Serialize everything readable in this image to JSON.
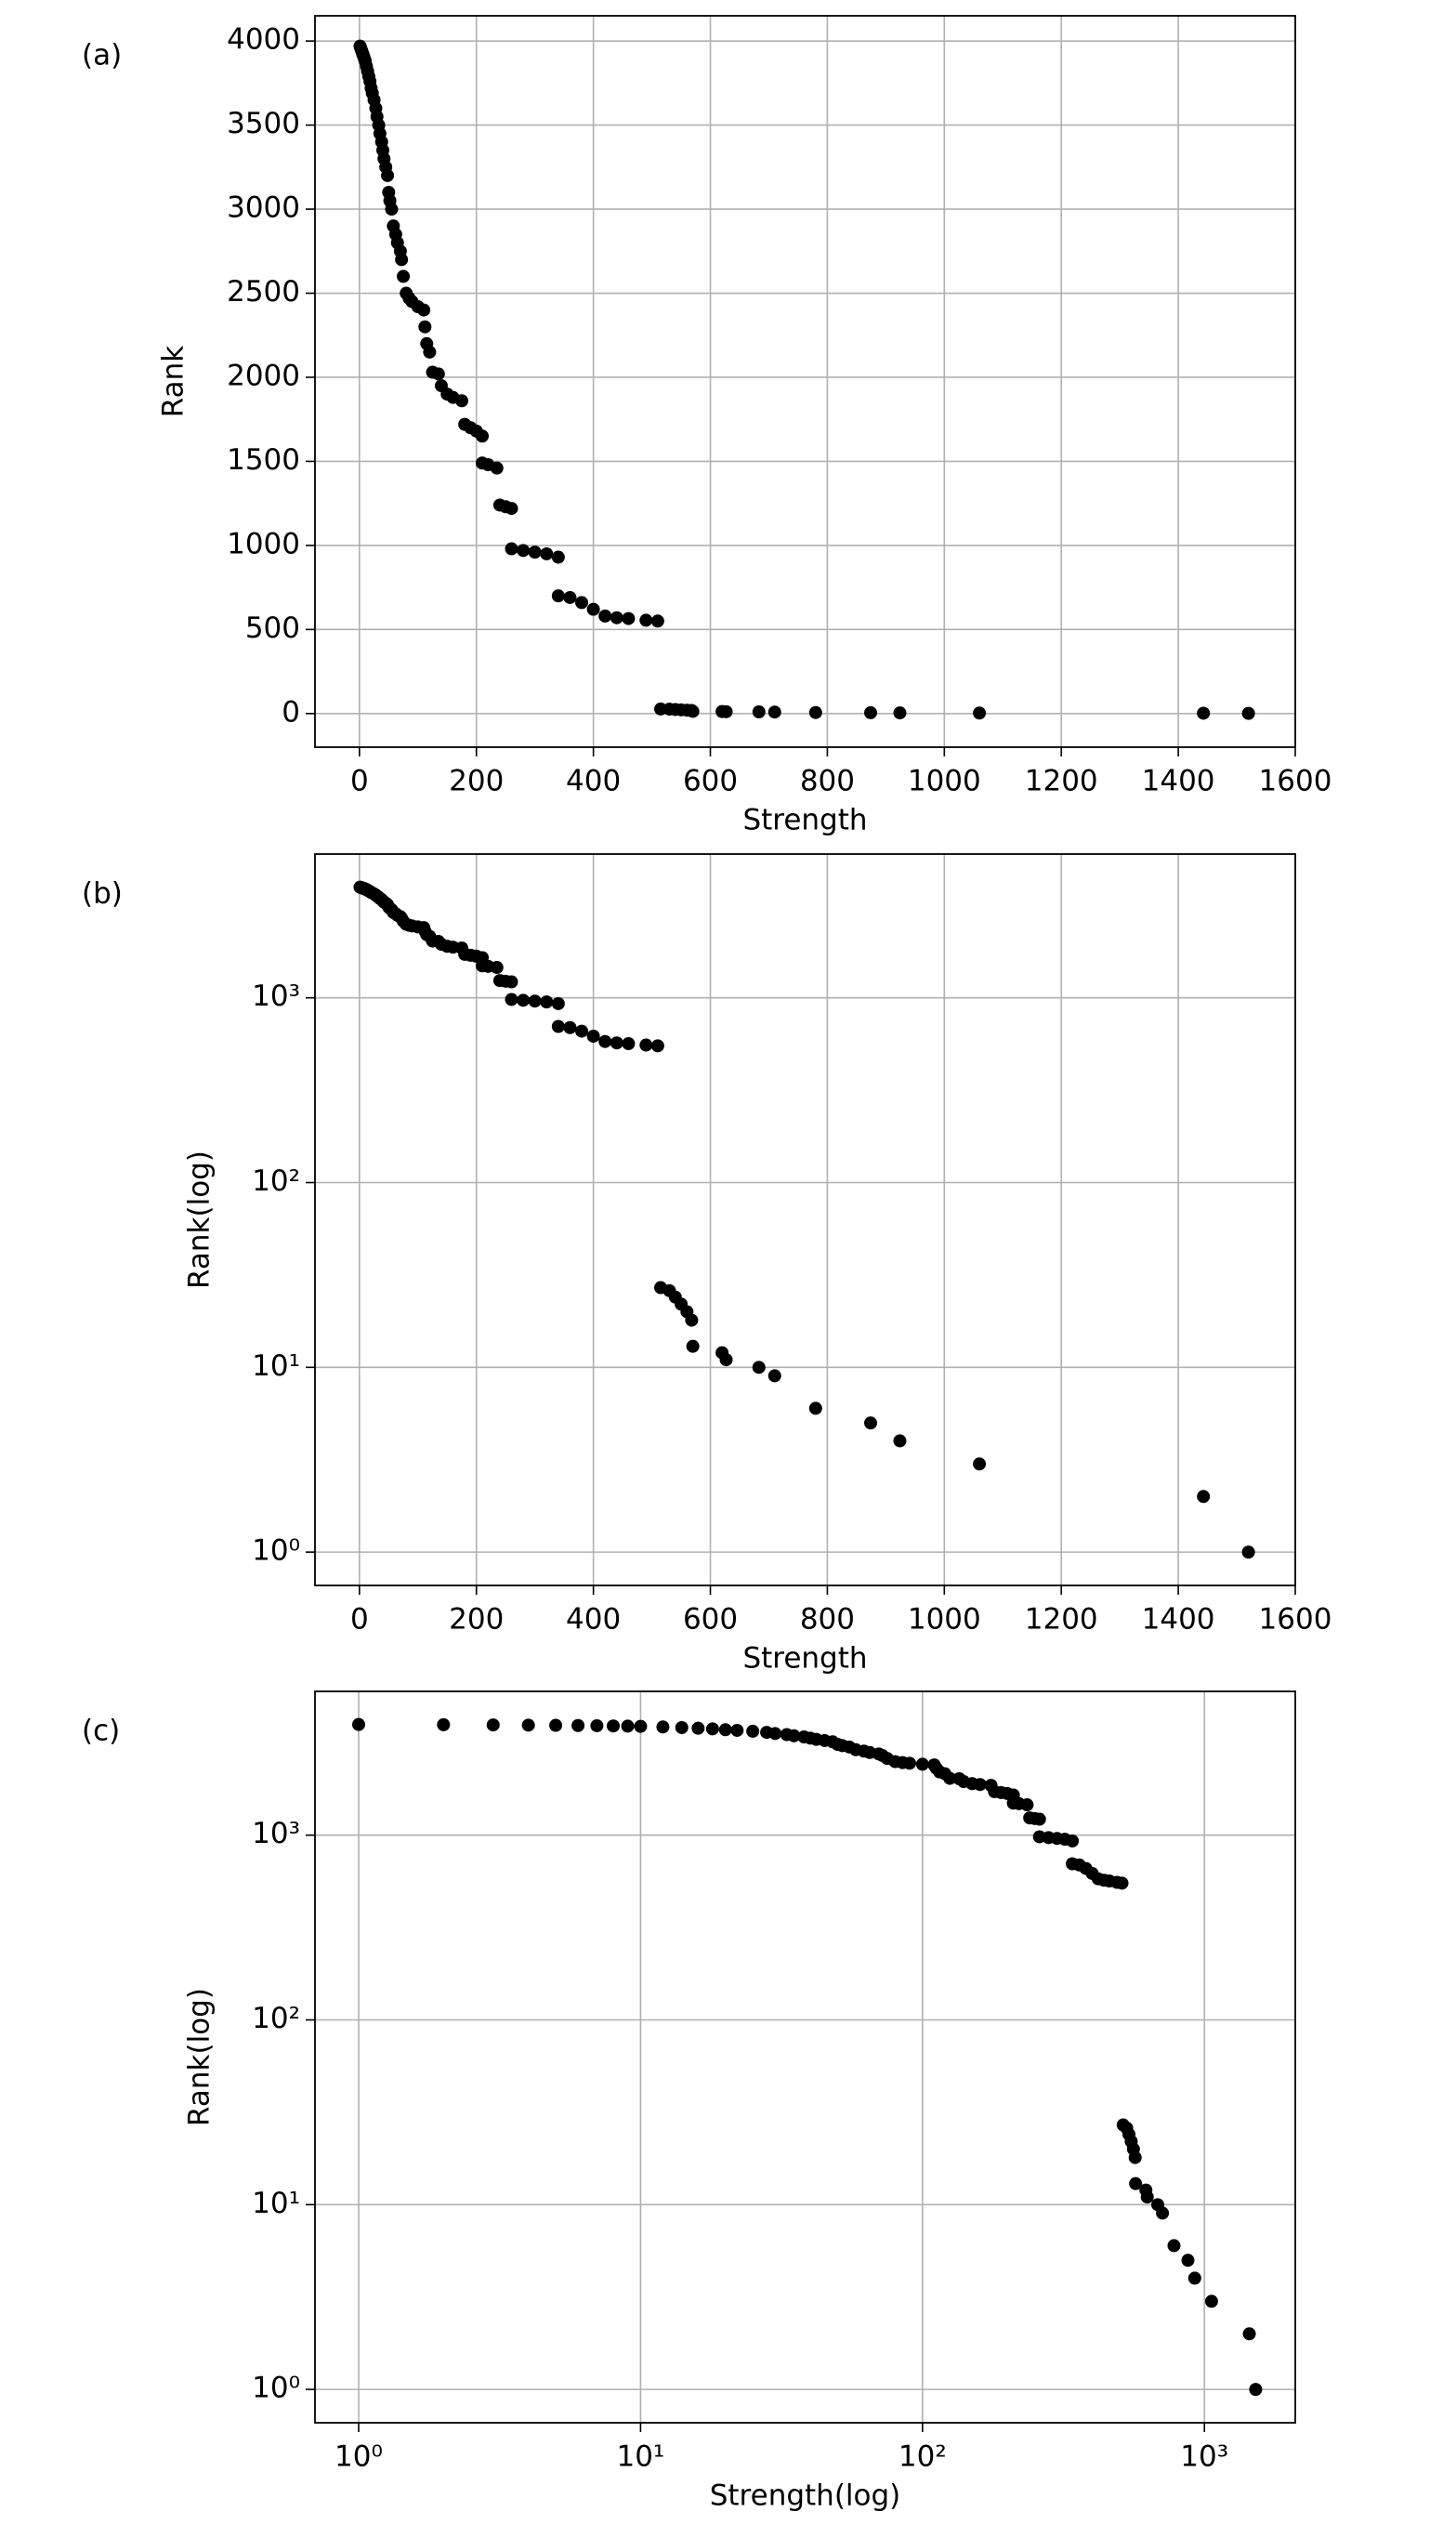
{
  "chart_data": [
    {
      "type": "scatter",
      "panel_label": "(a)",
      "x_label": "Strength",
      "y_label": "Rank",
      "color": "#000000",
      "grid": true,
      "log_x": false,
      "log_y": false,
      "xlim": [
        -76,
        1600
      ],
      "ylim": [
        -200,
        4150
      ],
      "xticks": [
        0,
        200,
        400,
        600,
        800,
        1000,
        1200,
        1400,
        1600
      ],
      "yticks": [
        0,
        500,
        1000,
        1500,
        2000,
        2500,
        3000,
        3500,
        4000
      ],
      "x": [
        1,
        2,
        3,
        4,
        5,
        6,
        7,
        8,
        9,
        10,
        12,
        14,
        16,
        18,
        20,
        22,
        25,
        28,
        30,
        33,
        35,
        38,
        40,
        42,
        45,
        48,
        50,
        52,
        55,
        58,
        62,
        65,
        70,
        72,
        75,
        80,
        85,
        90,
        100,
        110,
        112,
        115,
        120,
        125,
        135,
        140,
        150,
        160,
        175,
        180,
        190,
        200,
        210,
        210,
        220,
        235,
        240,
        250,
        260,
        260,
        280,
        300,
        320,
        340,
        340,
        360,
        380,
        400,
        420,
        440,
        460,
        490,
        510,
        515,
        530,
        540,
        550,
        560,
        568,
        570,
        620,
        627,
        683,
        710,
        780,
        874,
        924,
        1060,
        1443,
        1520
      ],
      "values": [
        3970,
        3960,
        3950,
        3940,
        3930,
        3920,
        3910,
        3900,
        3890,
        3880,
        3850,
        3820,
        3790,
        3760,
        3720,
        3690,
        3650,
        3600,
        3550,
        3500,
        3450,
        3400,
        3350,
        3300,
        3250,
        3200,
        3100,
        3050,
        3000,
        2900,
        2850,
        2800,
        2750,
        2700,
        2600,
        2500,
        2470,
        2450,
        2420,
        2400,
        2300,
        2200,
        2150,
        2030,
        2020,
        1950,
        1900,
        1880,
        1860,
        1720,
        1700,
        1680,
        1650,
        1490,
        1480,
        1460,
        1240,
        1230,
        1220,
        980,
        970,
        960,
        950,
        930,
        700,
        690,
        660,
        620,
        580,
        570,
        565,
        555,
        550,
        27,
        26,
        24,
        22,
        20,
        18,
        13,
        12,
        11,
        10,
        9,
        6,
        5,
        4,
        3,
        2,
        1
      ]
    },
    {
      "type": "scatter",
      "panel_label": "(b)",
      "x_label": "Strength",
      "y_label": "Rank(log)",
      "color": "#000000",
      "grid": true,
      "log_x": false,
      "log_y": true,
      "xlim": [
        -76,
        1600
      ],
      "ylim": [
        0.66,
        6000
      ],
      "xticks": [
        0,
        200,
        400,
        600,
        800,
        1000,
        1200,
        1400,
        1600
      ],
      "yticks": [
        {
          "value": 1,
          "label": "10⁰"
        },
        {
          "value": 10,
          "label": "10¹"
        },
        {
          "value": 100,
          "label": "10²"
        },
        {
          "value": 1000,
          "label": "10³"
        }
      ],
      "x": [
        1,
        2,
        3,
        4,
        5,
        6,
        7,
        8,
        9,
        10,
        12,
        14,
        16,
        18,
        20,
        22,
        25,
        28,
        30,
        33,
        35,
        38,
        40,
        42,
        45,
        48,
        50,
        52,
        55,
        58,
        62,
        65,
        70,
        72,
        75,
        80,
        85,
        90,
        100,
        110,
        112,
        115,
        120,
        125,
        135,
        140,
        150,
        160,
        175,
        180,
        190,
        200,
        210,
        210,
        220,
        235,
        240,
        250,
        260,
        260,
        280,
        300,
        320,
        340,
        340,
        360,
        380,
        400,
        420,
        440,
        460,
        490,
        510,
        515,
        530,
        540,
        550,
        560,
        568,
        570,
        620,
        627,
        683,
        710,
        780,
        874,
        924,
        1060,
        1443,
        1520
      ],
      "values": [
        3970,
        3960,
        3950,
        3940,
        3930,
        3920,
        3910,
        3900,
        3890,
        3880,
        3850,
        3820,
        3790,
        3760,
        3720,
        3690,
        3650,
        3600,
        3550,
        3500,
        3450,
        3400,
        3350,
        3300,
        3250,
        3200,
        3100,
        3050,
        3000,
        2900,
        2850,
        2800,
        2750,
        2700,
        2600,
        2500,
        2470,
        2450,
        2420,
        2400,
        2300,
        2200,
        2150,
        2030,
        2020,
        1950,
        1900,
        1880,
        1860,
        1720,
        1700,
        1680,
        1650,
        1490,
        1480,
        1460,
        1240,
        1230,
        1220,
        980,
        970,
        960,
        950,
        930,
        700,
        690,
        660,
        620,
        580,
        570,
        565,
        555,
        550,
        27,
        26,
        24,
        22,
        20,
        18,
        13,
        12,
        11,
        10,
        9,
        6,
        5,
        4,
        3,
        2,
        1
      ]
    },
    {
      "type": "scatter",
      "panel_label": "(c)",
      "x_label": "Strength(log)",
      "y_label": "Rank(log)",
      "color": "#000000",
      "grid": true,
      "log_x": true,
      "log_y": true,
      "xlim": [
        0.7,
        2100
      ],
      "ylim": [
        0.66,
        6000
      ],
      "xticks": [
        {
          "value": 1,
          "label": "10⁰"
        },
        {
          "value": 10,
          "label": "10¹"
        },
        {
          "value": 100,
          "label": "10²"
        },
        {
          "value": 1000,
          "label": "10³"
        }
      ],
      "yticks": [
        {
          "value": 1,
          "label": "10⁰"
        },
        {
          "value": 10,
          "label": "10¹"
        },
        {
          "value": 100,
          "label": "10²"
        },
        {
          "value": 1000,
          "label": "10³"
        }
      ],
      "x": [
        1,
        2,
        3,
        4,
        5,
        6,
        7,
        8,
        9,
        10,
        12,
        14,
        16,
        18,
        20,
        22,
        25,
        28,
        30,
        33,
        35,
        38,
        40,
        42,
        45,
        48,
        50,
        52,
        55,
        58,
        62,
        65,
        70,
        72,
        75,
        80,
        85,
        90,
        100,
        110,
        112,
        115,
        120,
        125,
        135,
        140,
        150,
        160,
        175,
        180,
        190,
        200,
        210,
        210,
        220,
        235,
        240,
        250,
        260,
        260,
        280,
        300,
        320,
        340,
        340,
        360,
        380,
        400,
        420,
        440,
        460,
        490,
        510,
        515,
        530,
        540,
        550,
        560,
        568,
        570,
        620,
        627,
        683,
        710,
        780,
        874,
        924,
        1060,
        1443,
        1520
      ],
      "values": [
        3970,
        3960,
        3950,
        3940,
        3930,
        3920,
        3910,
        3900,
        3890,
        3880,
        3850,
        3820,
        3790,
        3760,
        3720,
        3690,
        3650,
        3600,
        3550,
        3500,
        3450,
        3400,
        3350,
        3300,
        3250,
        3200,
        3100,
        3050,
        3000,
        2900,
        2850,
        2800,
        2750,
        2700,
        2600,
        2500,
        2470,
        2450,
        2420,
        2400,
        2300,
        2200,
        2150,
        2030,
        2020,
        1950,
        1900,
        1880,
        1860,
        1720,
        1700,
        1680,
        1650,
        1490,
        1480,
        1460,
        1240,
        1230,
        1220,
        980,
        970,
        960,
        950,
        930,
        700,
        690,
        660,
        620,
        580,
        570,
        565,
        555,
        550,
        27,
        26,
        24,
        22,
        20,
        18,
        13,
        12,
        11,
        10,
        9,
        6,
        5,
        4,
        3,
        2,
        1
      ]
    }
  ]
}
